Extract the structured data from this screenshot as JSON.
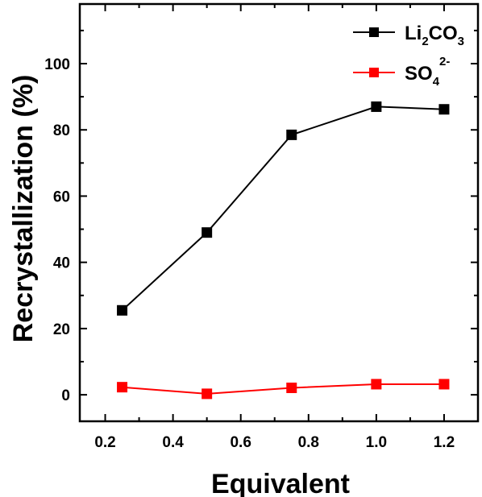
{
  "chart_data": {
    "type": "line",
    "title": "",
    "xlabel": "Equivalent",
    "ylabel": "Recrystallization (%)",
    "x": [
      0.25,
      0.5,
      0.75,
      1.0,
      1.2
    ],
    "xlim": [
      0.125,
      1.3
    ],
    "ylim": [
      -8,
      118
    ],
    "x_ticks": [
      0.2,
      0.4,
      0.6,
      0.8,
      1.0,
      1.2
    ],
    "x_tick_labels": [
      "0.2",
      "0.4",
      "0.6",
      "0.8",
      "1.0",
      "1.2"
    ],
    "y_ticks": [
      0,
      20,
      40,
      60,
      80,
      100
    ],
    "y_tick_labels": [
      "0",
      "20",
      "40",
      "60",
      "80",
      "100"
    ],
    "grid": false,
    "legend_position": "top-right",
    "series": [
      {
        "name": "Li2CO3",
        "legend_main": "Li",
        "legend_sub1": "2",
        "legend_mid": "CO",
        "legend_sub2": "3",
        "color": "#000000",
        "marker": "square",
        "values": [
          25.5,
          49,
          78.5,
          87,
          86.2
        ]
      },
      {
        "name": "SO4 2-",
        "legend_main": "SO",
        "legend_sub1": "4",
        "legend_sup": "2-",
        "color": "#ff0000",
        "marker": "square",
        "values": [
          2.3,
          0.3,
          2.1,
          3.2,
          3.2
        ]
      }
    ]
  }
}
